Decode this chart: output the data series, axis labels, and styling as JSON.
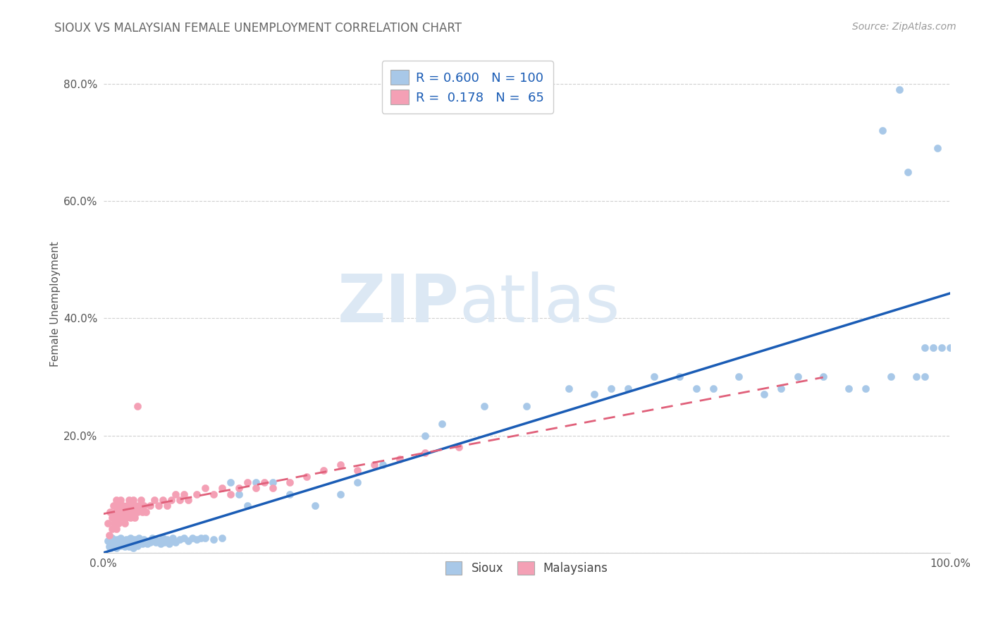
{
  "title": "SIOUX VS MALAYSIAN FEMALE UNEMPLOYMENT CORRELATION CHART",
  "source": "Source: ZipAtlas.com",
  "ylabel": "Female Unemployment",
  "xlim": [
    0.0,
    1.0
  ],
  "ylim": [
    0.0,
    0.85
  ],
  "sioux_R": 0.6,
  "sioux_N": 100,
  "malaysian_R": 0.178,
  "malaysian_N": 65,
  "sioux_color": "#a8c8e8",
  "malaysian_color": "#f4a0b5",
  "sioux_line_color": "#1a5cb5",
  "malaysian_line_color": "#e0607a",
  "watermark_zip": "ZIP",
  "watermark_atlas": "atlas",
  "watermark_color": "#dce8f4",
  "legend_label_sioux": "Sioux",
  "legend_label_malaysian": "Malaysians",
  "sioux_x": [
    0.005,
    0.007,
    0.008,
    0.009,
    0.01,
    0.01,
    0.012,
    0.013,
    0.014,
    0.015,
    0.015,
    0.016,
    0.017,
    0.018,
    0.02,
    0.02,
    0.022,
    0.023,
    0.025,
    0.025,
    0.027,
    0.028,
    0.03,
    0.03,
    0.032,
    0.033,
    0.035,
    0.035,
    0.037,
    0.038,
    0.04,
    0.04,
    0.042,
    0.044,
    0.046,
    0.048,
    0.05,
    0.052,
    0.055,
    0.058,
    0.06,
    0.062,
    0.065,
    0.068,
    0.07,
    0.072,
    0.075,
    0.078,
    0.08,
    0.082,
    0.085,
    0.09,
    0.095,
    0.1,
    0.105,
    0.11,
    0.115,
    0.12,
    0.13,
    0.14,
    0.15,
    0.16,
    0.17,
    0.18,
    0.2,
    0.22,
    0.25,
    0.28,
    0.3,
    0.33,
    0.38,
    0.4,
    0.45,
    0.5,
    0.55,
    0.58,
    0.6,
    0.62,
    0.65,
    0.68,
    0.7,
    0.72,
    0.75,
    0.78,
    0.8,
    0.82,
    0.85,
    0.88,
    0.9,
    0.92,
    0.93,
    0.94,
    0.95,
    0.96,
    0.97,
    0.97,
    0.98,
    0.985,
    0.99,
    1.0
  ],
  "sioux_y": [
    0.02,
    0.01,
    0.015,
    0.008,
    0.025,
    0.01,
    0.018,
    0.012,
    0.02,
    0.015,
    0.008,
    0.022,
    0.01,
    0.016,
    0.012,
    0.025,
    0.015,
    0.02,
    0.018,
    0.01,
    0.022,
    0.015,
    0.02,
    0.01,
    0.025,
    0.012,
    0.018,
    0.008,
    0.022,
    0.015,
    0.02,
    0.012,
    0.025,
    0.018,
    0.015,
    0.022,
    0.02,
    0.015,
    0.018,
    0.025,
    0.022,
    0.018,
    0.02,
    0.015,
    0.025,
    0.018,
    0.022,
    0.015,
    0.02,
    0.025,
    0.018,
    0.022,
    0.025,
    0.02,
    0.025,
    0.022,
    0.025,
    0.025,
    0.022,
    0.025,
    0.12,
    0.1,
    0.08,
    0.12,
    0.12,
    0.1,
    0.08,
    0.1,
    0.12,
    0.15,
    0.2,
    0.22,
    0.25,
    0.25,
    0.28,
    0.27,
    0.28,
    0.28,
    0.3,
    0.3,
    0.28,
    0.28,
    0.3,
    0.27,
    0.28,
    0.3,
    0.3,
    0.28,
    0.28,
    0.72,
    0.3,
    0.79,
    0.65,
    0.3,
    0.3,
    0.35,
    0.35,
    0.69,
    0.35,
    0.35
  ],
  "malaysian_x": [
    0.005,
    0.007,
    0.008,
    0.01,
    0.01,
    0.012,
    0.013,
    0.014,
    0.015,
    0.015,
    0.016,
    0.017,
    0.018,
    0.02,
    0.02,
    0.022,
    0.023,
    0.025,
    0.025,
    0.027,
    0.028,
    0.03,
    0.03,
    0.032,
    0.033,
    0.035,
    0.035,
    0.037,
    0.038,
    0.04,
    0.04,
    0.042,
    0.044,
    0.046,
    0.048,
    0.05,
    0.055,
    0.06,
    0.065,
    0.07,
    0.075,
    0.08,
    0.085,
    0.09,
    0.095,
    0.1,
    0.11,
    0.12,
    0.13,
    0.14,
    0.15,
    0.16,
    0.17,
    0.18,
    0.19,
    0.2,
    0.22,
    0.24,
    0.26,
    0.28,
    0.3,
    0.32,
    0.35,
    0.38,
    0.42
  ],
  "malaysian_y": [
    0.05,
    0.03,
    0.07,
    0.04,
    0.06,
    0.08,
    0.05,
    0.07,
    0.09,
    0.04,
    0.06,
    0.08,
    0.05,
    0.07,
    0.09,
    0.06,
    0.08,
    0.05,
    0.07,
    0.06,
    0.08,
    0.07,
    0.09,
    0.06,
    0.08,
    0.07,
    0.09,
    0.06,
    0.08,
    0.07,
    0.25,
    0.08,
    0.09,
    0.07,
    0.08,
    0.07,
    0.08,
    0.09,
    0.08,
    0.09,
    0.08,
    0.09,
    0.1,
    0.09,
    0.1,
    0.09,
    0.1,
    0.11,
    0.1,
    0.11,
    0.1,
    0.11,
    0.12,
    0.11,
    0.12,
    0.11,
    0.12,
    0.13,
    0.14,
    0.15,
    0.14,
    0.15,
    0.16,
    0.17,
    0.18
  ]
}
